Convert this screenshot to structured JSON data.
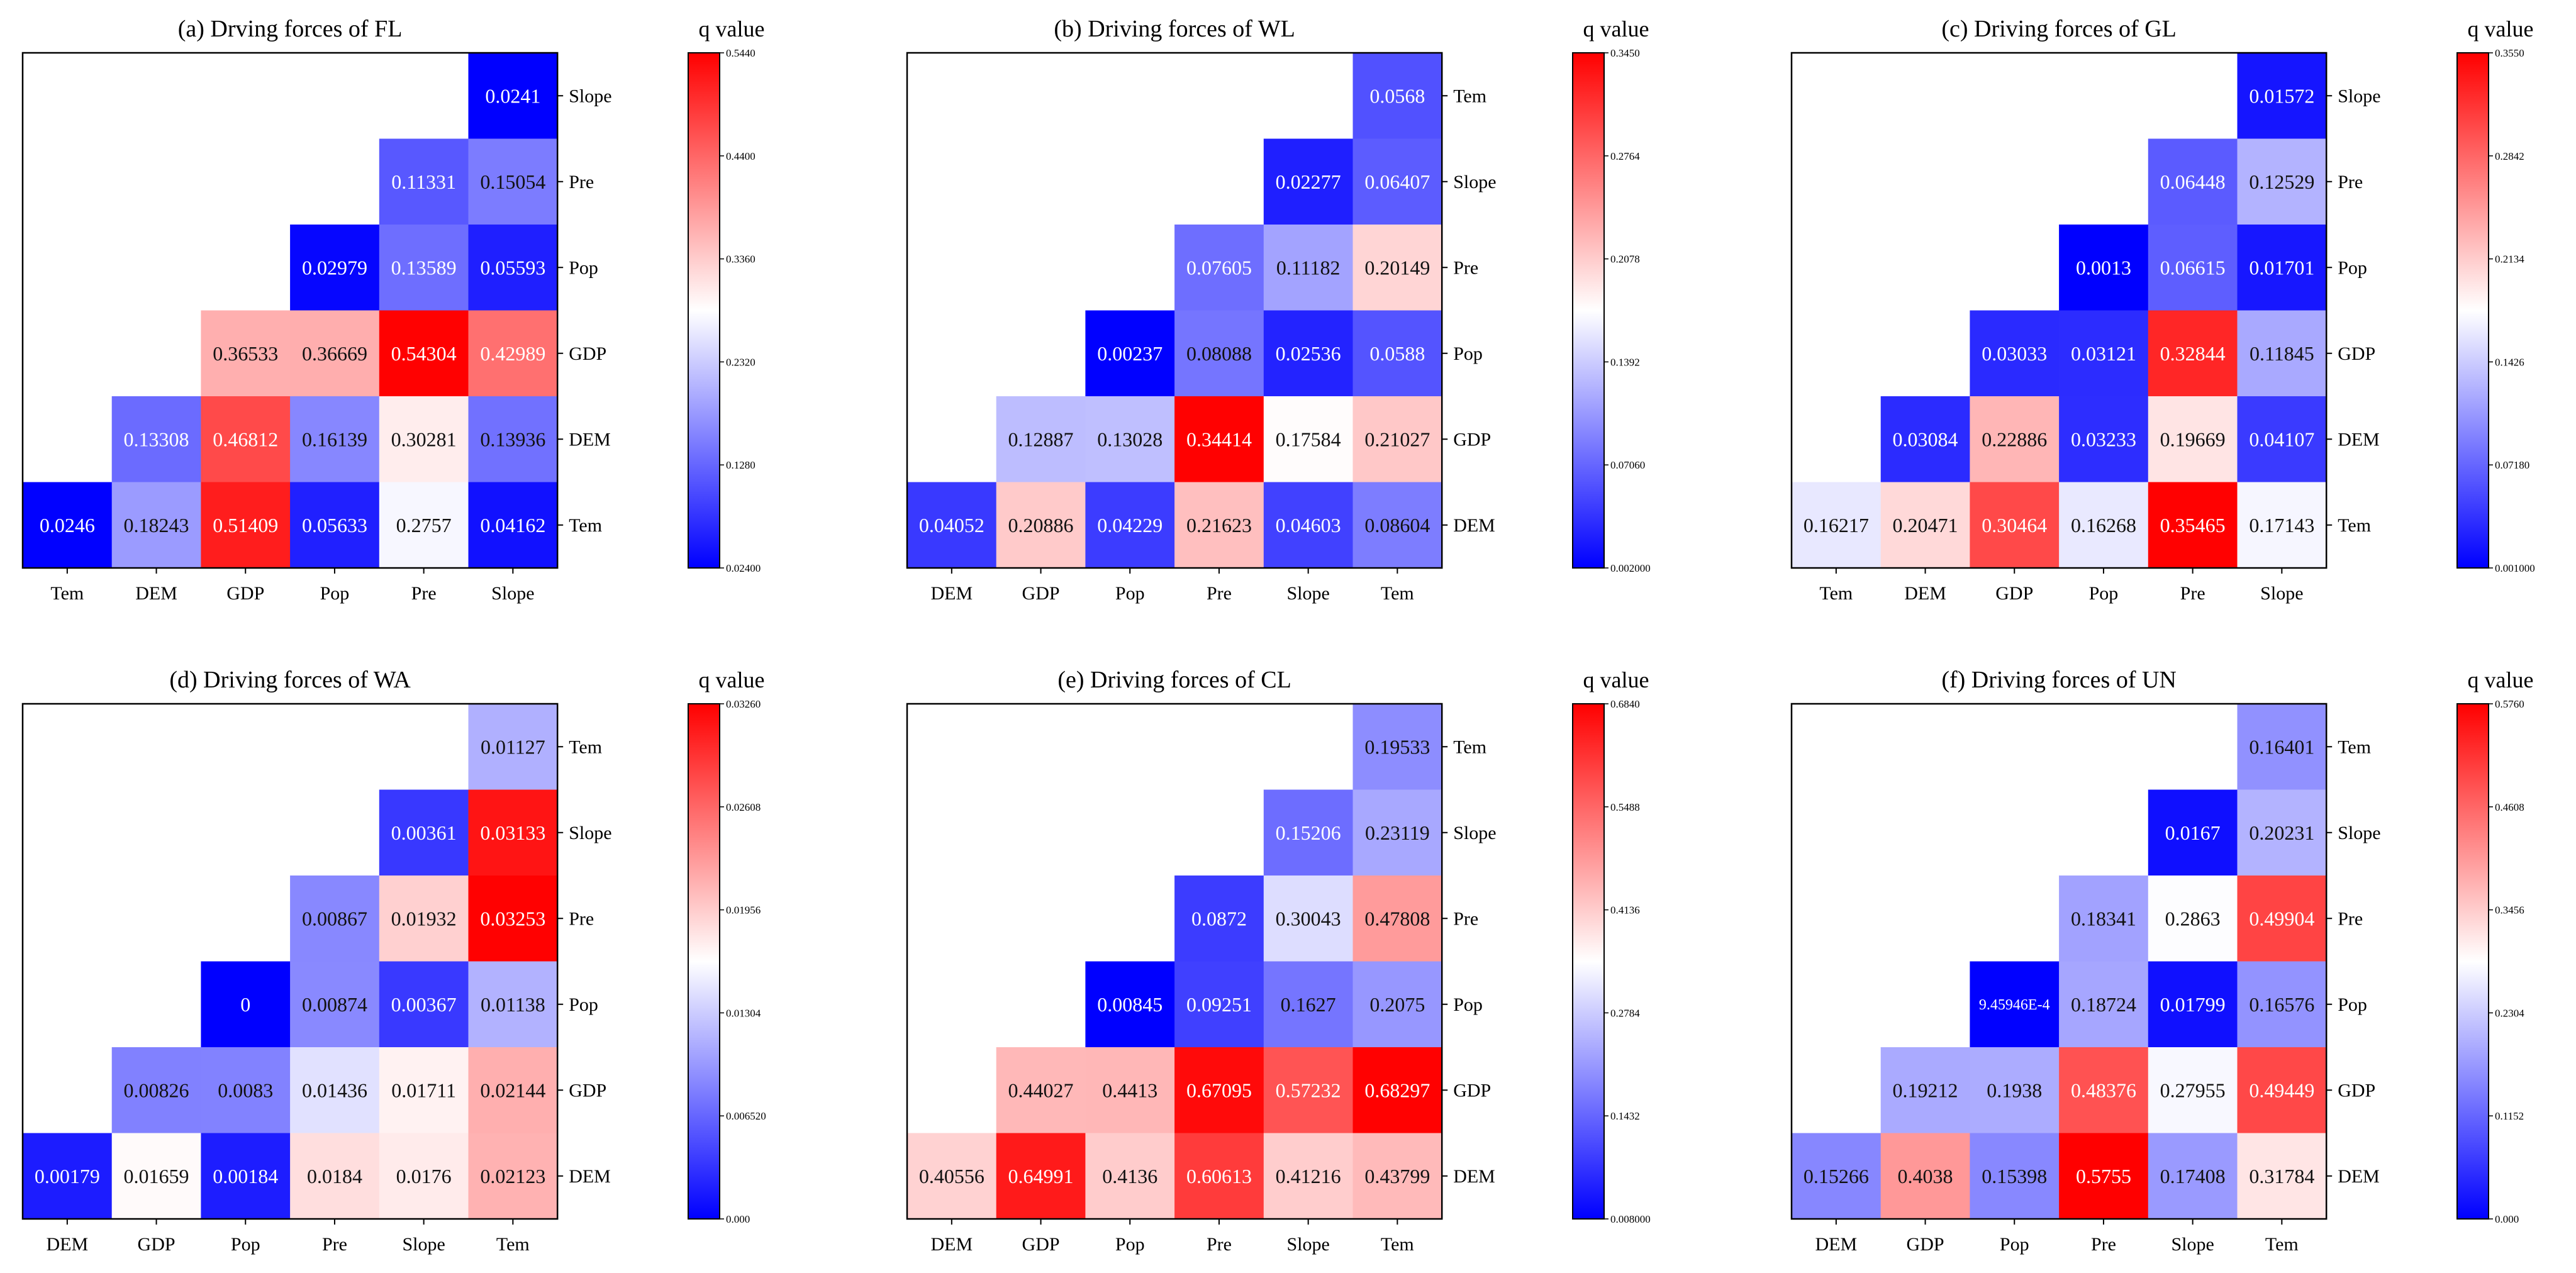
{
  "chart_data": [
    {
      "type": "heatmap",
      "title": "(a) Drving forces of FL",
      "x_labels": [
        "Tem",
        "DEM",
        "GDP",
        "Pop",
        "Pre",
        "Slope"
      ],
      "y_labels": [
        "Slope",
        "Pre",
        "Pop",
        "GDP",
        "DEM",
        "Tem"
      ],
      "cells": [
        [
          null,
          null,
          null,
          null,
          null,
          "0.0241"
        ],
        [
          null,
          null,
          null,
          null,
          "0.11331",
          "0.15054"
        ],
        [
          null,
          null,
          null,
          "0.02979",
          "0.13589",
          "0.05593"
        ],
        [
          null,
          null,
          "0.36533",
          "0.36669",
          "0.54304",
          "0.42989"
        ],
        [
          null,
          "0.13308",
          "0.46812",
          "0.16139",
          "0.30281",
          "0.13936"
        ],
        [
          "0.0246",
          "0.18243",
          "0.51409",
          "0.05633",
          "0.2757",
          "0.04162"
        ]
      ],
      "colorbar": {
        "label": "q value",
        "min": 0.024,
        "max": 0.544,
        "ticks": [
          "0.02400",
          "0.1280",
          "0.2320",
          "0.3360",
          "0.4400",
          "0.5440"
        ]
      }
    },
    {
      "type": "heatmap",
      "title": "(b) Driving forces of WL",
      "x_labels": [
        "DEM",
        "GDP",
        "Pop",
        "Pre",
        "Slope",
        "Tem"
      ],
      "y_labels": [
        "Tem",
        "Slope",
        "Pre",
        "Pop",
        "GDP",
        "DEM"
      ],
      "cells": [
        [
          null,
          null,
          null,
          null,
          null,
          "0.0568"
        ],
        [
          null,
          null,
          null,
          null,
          "0.02277",
          "0.06407"
        ],
        [
          null,
          null,
          null,
          "0.07605",
          "0.11182",
          "0.20149"
        ],
        [
          null,
          null,
          "0.00237",
          "0.08088",
          "0.02536",
          "0.0588"
        ],
        [
          null,
          "0.12887",
          "0.13028",
          "0.34414",
          "0.17584",
          "0.21027"
        ],
        [
          "0.04052",
          "0.20886",
          "0.04229",
          "0.21623",
          "0.04603",
          "0.08604"
        ]
      ],
      "colorbar": {
        "label": "q value",
        "min": 0.002,
        "max": 0.345,
        "ticks": [
          "0.002000",
          "0.07060",
          "0.1392",
          "0.2078",
          "0.2764",
          "0.3450"
        ]
      }
    },
    {
      "type": "heatmap",
      "title": "(c) Driving forces of GL",
      "x_labels": [
        "Tem",
        "DEM",
        "GDP",
        "Pop",
        "Pre",
        "Slope"
      ],
      "y_labels": [
        "Slope",
        "Pre",
        "Pop",
        "GDP",
        "DEM",
        "Tem"
      ],
      "cells": [
        [
          null,
          null,
          null,
          null,
          null,
          "0.01572"
        ],
        [
          null,
          null,
          null,
          null,
          "0.06448",
          "0.12529"
        ],
        [
          null,
          null,
          null,
          "0.0013",
          "0.06615",
          "0.01701"
        ],
        [
          null,
          null,
          "0.03033",
          "0.03121",
          "0.32844",
          "0.11845"
        ],
        [
          null,
          "0.03084",
          "0.22886",
          "0.03233",
          "0.19669",
          "0.04107"
        ],
        [
          "0.16217",
          "0.20471",
          "0.30464",
          "0.16268",
          "0.35465",
          "0.17143"
        ]
      ],
      "colorbar": {
        "label": "q value",
        "min": 0.001,
        "max": 0.355,
        "ticks": [
          "0.001000",
          "0.07180",
          "0.1426",
          "0.2134",
          "0.2842",
          "0.3550"
        ]
      }
    },
    {
      "type": "heatmap",
      "title": "(d) Driving forces of WA",
      "x_labels": [
        "DEM",
        "GDP",
        "Pop",
        "Pre",
        "Slope",
        "Tem"
      ],
      "y_labels": [
        "Tem",
        "Slope",
        "Pre",
        "Pop",
        "GDP",
        "DEM"
      ],
      "cells": [
        [
          null,
          null,
          null,
          null,
          null,
          "0.01127"
        ],
        [
          null,
          null,
          null,
          null,
          "0.00361",
          "0.03133"
        ],
        [
          null,
          null,
          null,
          "0.00867",
          "0.01932",
          "0.03253"
        ],
        [
          null,
          null,
          "0",
          "0.00874",
          "0.00367",
          "0.01138"
        ],
        [
          null,
          "0.00826",
          "0.0083",
          "0.01436",
          "0.01711",
          "0.02144"
        ],
        [
          "0.00179",
          "0.01659",
          "0.00184",
          "0.0184",
          "0.0176",
          "0.02123"
        ]
      ],
      "colorbar": {
        "label": "q value",
        "min": 0.0,
        "max": 0.0326,
        "ticks": [
          "0.000",
          "0.006520",
          "0.01304",
          "0.01956",
          "0.02608",
          "0.03260"
        ]
      }
    },
    {
      "type": "heatmap",
      "title": "(e) Driving forces of CL",
      "x_labels": [
        "DEM",
        "GDP",
        "Pop",
        "Pre",
        "Slope",
        "Tem"
      ],
      "y_labels": [
        "Tem",
        "Slope",
        "Pre",
        "Pop",
        "GDP",
        "DEM"
      ],
      "cells": [
        [
          null,
          null,
          null,
          null,
          null,
          "0.19533"
        ],
        [
          null,
          null,
          null,
          null,
          "0.15206",
          "0.23119"
        ],
        [
          null,
          null,
          null,
          "0.0872",
          "0.30043",
          "0.47808"
        ],
        [
          null,
          null,
          "0.00845",
          "0.09251",
          "0.1627",
          "0.2075"
        ],
        [
          null,
          "0.44027",
          "0.4413",
          "0.67095",
          "0.57232",
          "0.68297"
        ],
        [
          "0.40556",
          "0.64991",
          "0.4136",
          "0.60613",
          "0.41216",
          "0.43799"
        ]
      ],
      "colorbar": {
        "label": "q value",
        "min": 0.008,
        "max": 0.684,
        "ticks": [
          "0.008000",
          "0.1432",
          "0.2784",
          "0.4136",
          "0.5488",
          "0.6840"
        ]
      }
    },
    {
      "type": "heatmap",
      "title": "(f) Driving forces of UN",
      "x_labels": [
        "DEM",
        "GDP",
        "Pop",
        "Pre",
        "Slope",
        "Tem"
      ],
      "y_labels": [
        "Tem",
        "Slope",
        "Pre",
        "Pop",
        "GDP",
        "DEM"
      ],
      "cells": [
        [
          null,
          null,
          null,
          null,
          null,
          "0.16401"
        ],
        [
          null,
          null,
          null,
          null,
          "0.0167",
          "0.20231"
        ],
        [
          null,
          null,
          null,
          "0.18341",
          "0.2863",
          "0.49904"
        ],
        [
          null,
          null,
          "9.45946E-4",
          "0.18724",
          "0.01799",
          "0.16576"
        ],
        [
          null,
          "0.19212",
          "0.1938",
          "0.48376",
          "0.27955",
          "0.49449"
        ],
        [
          "0.15266",
          "0.4038",
          "0.15398",
          "0.5755",
          "0.17408",
          "0.31784"
        ]
      ],
      "colorbar": {
        "label": "q value",
        "min": 0.0,
        "max": 0.576,
        "ticks": [
          "0.000",
          "0.1152",
          "0.2304",
          "0.3456",
          "0.4608",
          "0.5760"
        ]
      }
    }
  ]
}
